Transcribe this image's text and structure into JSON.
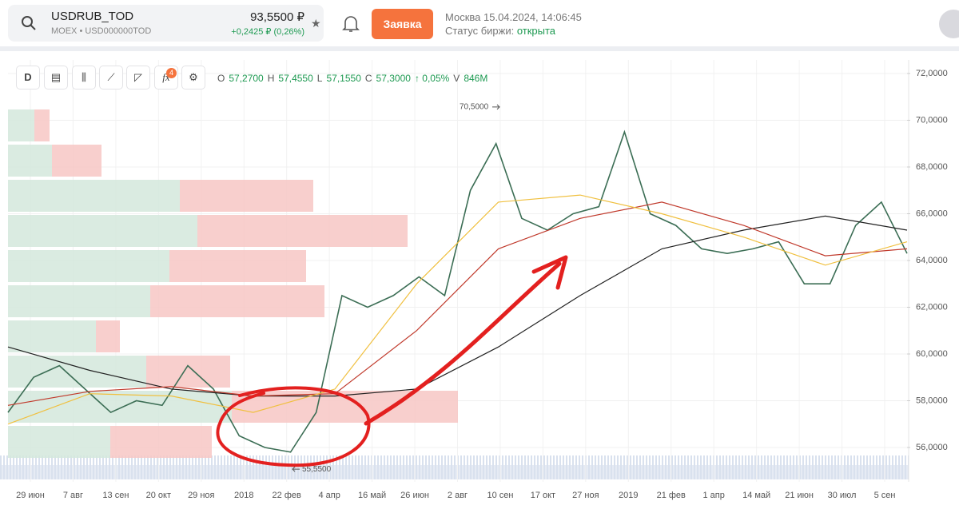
{
  "header": {
    "ticker": "USDRUB_TOD",
    "exchange": "MOEX • USD000000TOD",
    "price": "93,5500 ₽",
    "change": "+0,2425 ₽ (0,26%)",
    "order_button": "Заявка",
    "datetime": "Москва 15.04.2024, 14:06:45",
    "status_label": "Статус биржи:",
    "status_value": "открыта"
  },
  "toolbar": {
    "interval": "D",
    "indicator_count": "4",
    "ohlc": [
      "O",
      "57,2700",
      "H",
      "57,4550",
      "L",
      "57,1550",
      "C",
      "57,3000",
      "↑ 0,05%",
      "V",
      "846M"
    ]
  },
  "chart_data": {
    "type": "line",
    "x_labels": [
      "29 июн",
      "7 авг",
      "13 сен",
      "20 окт",
      "29 ноя",
      "2018",
      "22 фев",
      "4 апр",
      "16 май",
      "26 июн",
      "2 авг",
      "10 сен",
      "17 окт",
      "27 ноя",
      "2019",
      "21 фев",
      "1 апр",
      "14 май",
      "21 июн",
      "30 июл",
      "5 сен"
    ],
    "series": [
      {
        "color": "#3c6e55",
        "values": [
          57.5,
          59,
          59.5,
          58.5,
          57.5,
          58,
          57.8,
          59.5,
          58.5,
          56.5,
          56,
          55.8,
          57.5,
          62.5,
          62,
          62.5,
          63.3,
          62.5,
          67,
          69,
          65.8,
          65.3,
          66,
          66.3,
          69.5,
          66,
          65.5,
          64.5,
          64.3,
          64.5,
          64.8,
          63,
          63,
          65.5,
          66.5,
          64.3
        ]
      },
      {
        "color": "#222222",
        "values": [
          60.3,
          59.3,
          58.5,
          58.2,
          58.2,
          58.5,
          60.3,
          62.5,
          64.5,
          65.3,
          65.9,
          65.3
        ]
      },
      {
        "color": "#c0392b",
        "values": [
          57.8,
          58.4,
          58.6,
          58.2,
          58.3,
          61,
          64.5,
          65.8,
          66.5,
          65.5,
          64.2,
          64.5
        ]
      },
      {
        "color": "#f0c040",
        "values": [
          57,
          58.3,
          58.2,
          57.5,
          58.5,
          63,
          66.5,
          66.8,
          66,
          65,
          63.8,
          64.8
        ]
      }
    ],
    "volume_profile": {
      "buy_color": "#d4e8dc",
      "sell_color": "#f7c7c4",
      "buy": [
        3.3,
        5.5,
        21.5,
        23.7,
        20.2,
        17.8,
        11,
        17.3,
        28,
        12.8
      ],
      "sell": [
        1.9,
        6.2,
        16.7,
        26.3,
        17.1,
        21.8,
        3,
        10.5,
        28.3,
        12.7
      ]
    },
    "annotations": [
      {
        "value": 70.5,
        "label": "70,5000"
      },
      {
        "value": 55.55,
        "label": "55,5500"
      }
    ],
    "ylim": [
      54.53,
      72.58
    ],
    "yticks": [
      {
        "value": 72,
        "label": "72,0000"
      },
      {
        "value": 70,
        "label": "70,0000"
      },
      {
        "value": 68,
        "label": "68,0000"
      },
      {
        "value": 66,
        "label": "66,0000"
      },
      {
        "value": 64,
        "label": "64,0000"
      },
      {
        "value": 62,
        "label": "62,0000"
      },
      {
        "value": 60,
        "label": "60,0000"
      },
      {
        "value": 58,
        "label": "58,0000"
      },
      {
        "value": 56,
        "label": "56,0000"
      }
    ],
    "grid": true
  }
}
